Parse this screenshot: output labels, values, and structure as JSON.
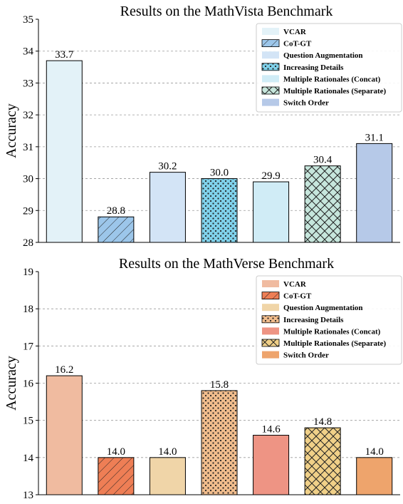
{
  "chart_data": [
    {
      "type": "bar",
      "title": "Results on the MathVista Benchmark",
      "xlabel": "",
      "ylabel": "Accuracy",
      "ylim": [
        28,
        35
      ],
      "yticks": [
        "28",
        "29",
        "30",
        "31",
        "32",
        "33",
        "34",
        "35"
      ],
      "grid": "horizontal dashed",
      "legend_position": "top-right",
      "series": [
        {
          "name": "VCAR",
          "value": 33.7,
          "label": "33.7",
          "color": "#e3f2f8",
          "hatch": "none"
        },
        {
          "name": "CoT-GT",
          "value": 28.8,
          "label": "28.8",
          "color": "#9cc6ea",
          "hatch": "diagonal"
        },
        {
          "name": "Question Augmentation",
          "value": 30.2,
          "label": "30.2",
          "color": "#d3e4f6",
          "hatch": "none"
        },
        {
          "name": "Increasing Details",
          "value": 30.0,
          "label": "30.0",
          "color": "#7fd1ea",
          "hatch": "dots"
        },
        {
          "name": "Multiple Rationales (Concat)",
          "value": 29.9,
          "label": "29.9",
          "color": "#d0ecf6",
          "hatch": "none"
        },
        {
          "name": "Multiple Rationales (Separate)",
          "value": 30.4,
          "label": "30.4",
          "color": "#c6e6dc",
          "hatch": "crosshatch"
        },
        {
          "name": "Switch Order",
          "value": 31.1,
          "label": "31.1",
          "color": "#b6c9e8",
          "hatch": "none"
        }
      ]
    },
    {
      "type": "bar",
      "title": "Results on the MathVerse Benchmark",
      "xlabel": "",
      "ylabel": "Accuracy",
      "ylim": [
        13,
        19
      ],
      "yticks": [
        "13",
        "14",
        "15",
        "16",
        "17",
        "18",
        "19"
      ],
      "grid": "horizontal dashed",
      "legend_position": "top-right",
      "series": [
        {
          "name": "VCAR",
          "value": 16.2,
          "label": "16.2",
          "color": "#f0bba0",
          "hatch": "none"
        },
        {
          "name": "CoT-GT",
          "value": 14.0,
          "label": "14.0",
          "color": "#ee7e55",
          "hatch": "diagonal"
        },
        {
          "name": "Question Augmentation",
          "value": 14.0,
          "label": "14.0",
          "color": "#f0d5a8",
          "hatch": "none"
        },
        {
          "name": "Increasing Details",
          "value": 15.8,
          "label": "15.8",
          "color": "#f0bc8c",
          "hatch": "dots"
        },
        {
          "name": "Multiple Rationales (Concat)",
          "value": 14.6,
          "label": "14.6",
          "color": "#ee9484",
          "hatch": "none"
        },
        {
          "name": "Multiple Rationales (Separate)",
          "value": 14.8,
          "label": "14.8",
          "color": "#f0d088",
          "hatch": "crosshatch"
        },
        {
          "name": "Switch Order",
          "value": 14.0,
          "label": "14.0",
          "color": "#eea46c",
          "hatch": "none"
        }
      ]
    }
  ]
}
